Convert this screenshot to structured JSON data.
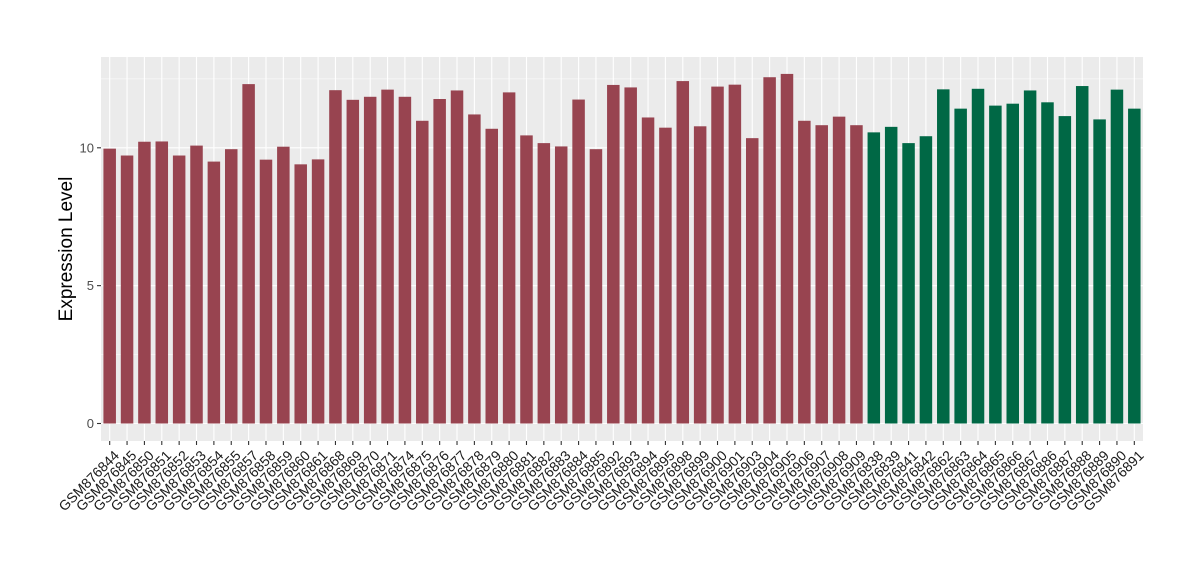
{
  "chart_data": {
    "type": "bar",
    "title": "",
    "xlabel": "",
    "ylabel": "Expression Level",
    "ylim": [
      0,
      13.0
    ],
    "yticks": [
      0,
      5,
      10
    ],
    "grid": true,
    "legend": "none",
    "colors": {
      "group1": "#984450",
      "group2": "#006845",
      "panel": "#ebebeb",
      "gridline": "#ffffff"
    },
    "series": [
      {
        "color": "#984450",
        "categories": [
          "GSM876844",
          "GSM876845",
          "GSM876850",
          "GSM876851",
          "GSM876852",
          "GSM876853",
          "GSM876854",
          "GSM876855",
          "GSM876857",
          "GSM876858",
          "GSM876859",
          "GSM876860",
          "GSM876861",
          "GSM876868",
          "GSM876869",
          "GSM876870",
          "GSM876871",
          "GSM876874",
          "GSM876875",
          "GSM876876",
          "GSM876877",
          "GSM876878",
          "GSM876879",
          "GSM876880",
          "GSM876881",
          "GSM876882",
          "GSM876883",
          "GSM876884",
          "GSM876885",
          "GSM876892",
          "GSM876893",
          "GSM876894",
          "GSM876895",
          "GSM876898",
          "GSM876899",
          "GSM876900",
          "GSM876901",
          "GSM876903",
          "GSM876904",
          "GSM876905",
          "GSM876906",
          "GSM876907",
          "GSM876908",
          "GSM876909"
        ],
        "values": [
          9.97,
          9.72,
          10.22,
          10.23,
          9.72,
          10.08,
          9.5,
          9.95,
          12.31,
          9.57,
          10.04,
          9.4,
          9.58,
          12.09,
          11.74,
          11.85,
          12.11,
          11.85,
          10.98,
          11.77,
          12.08,
          11.21,
          10.69,
          12.01,
          10.45,
          10.17,
          10.05,
          11.75,
          9.95,
          12.28,
          12.19,
          11.1,
          10.73,
          12.42,
          10.78,
          12.22,
          12.29,
          10.35,
          12.56,
          12.68,
          10.98,
          10.82,
          11.13,
          10.82
        ]
      },
      {
        "color": "#006845",
        "categories": [
          "GSM876838",
          "GSM876839",
          "GSM876841",
          "GSM876842",
          "GSM876862",
          "GSM876863",
          "GSM876864",
          "GSM876865",
          "GSM876866",
          "GSM876867",
          "GSM876886",
          "GSM876887",
          "GSM876888",
          "GSM876889",
          "GSM876890",
          "GSM876891"
        ],
        "values": [
          10.56,
          10.76,
          10.17,
          10.42,
          12.12,
          11.42,
          12.14,
          11.53,
          11.6,
          12.08,
          11.65,
          11.15,
          12.24,
          11.03,
          12.11,
          11.42
        ]
      }
    ]
  }
}
